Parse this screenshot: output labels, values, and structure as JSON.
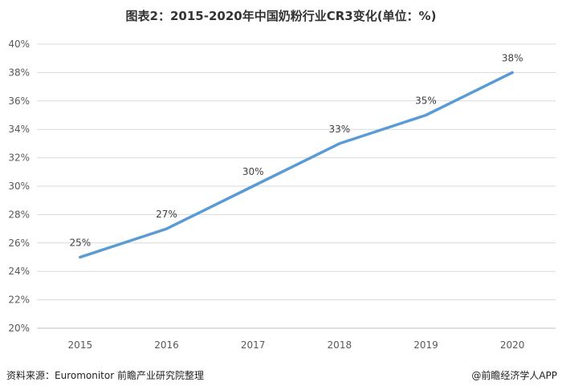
{
  "chart_data": {
    "type": "line",
    "title": "图表2：2015-2020年中国奶粉行业CR3变化(单位：%)",
    "categories": [
      "2015",
      "2016",
      "2017",
      "2018",
      "2019",
      "2020"
    ],
    "series": [
      {
        "values": [
          25,
          27,
          30,
          33,
          35,
          38
        ],
        "labels": [
          "25%",
          "27%",
          "30%",
          "33%",
          "35%",
          "38%"
        ],
        "color": "#5b9bd5"
      }
    ],
    "ylim": [
      20,
      40
    ],
    "yticks": [
      "20%",
      "22%",
      "24%",
      "26%",
      "28%",
      "30%",
      "32%",
      "34%",
      "36%",
      "38%",
      "40%"
    ],
    "grid": true,
    "legend": "none"
  },
  "footer": {
    "source": "资料来源：Euromonitor 前瞻产业研究院整理",
    "credit": "@前瞻经济学人APP"
  }
}
